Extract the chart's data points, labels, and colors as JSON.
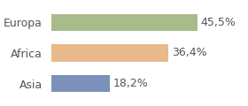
{
  "categories": [
    "Asia",
    "Africa",
    "Europa"
  ],
  "values": [
    18.2,
    36.4,
    45.5
  ],
  "labels": [
    "18,2%",
    "36,4%",
    "45,5%"
  ],
  "bar_colors": [
    "#7b91bb",
    "#e8b98a",
    "#a8bb8a"
  ],
  "background_color": "#ffffff",
  "xlim": [
    0,
    60
  ],
  "bar_height": 0.55,
  "label_fontsize": 9,
  "tick_fontsize": 9,
  "text_color": "#555555"
}
